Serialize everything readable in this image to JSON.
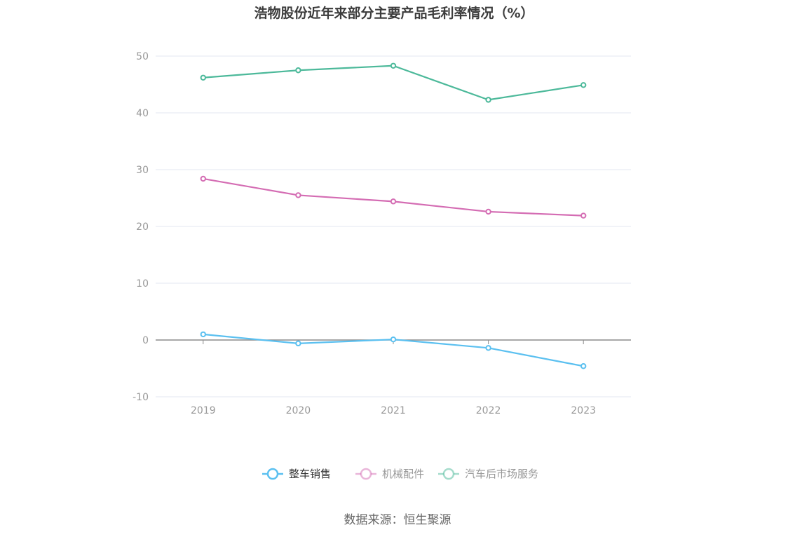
{
  "chart_data": {
    "type": "line",
    "title": "浩物股份近年来部分主要产品毛利率情况（%）",
    "xlabel": "",
    "ylabel": "",
    "x": [
      "2019",
      "2020",
      "2021",
      "2022",
      "2023"
    ],
    "ylim": [
      -10,
      50
    ],
    "yticks": [
      50,
      40,
      30,
      20,
      10,
      0,
      -10
    ],
    "grid": true,
    "legend_position": "bottom",
    "series": [
      {
        "name": "整车销售",
        "color": "#5bc0f0",
        "values": [
          1.0,
          -0.6,
          0.1,
          -1.4,
          -4.6
        ]
      },
      {
        "name": "机械配件",
        "color": "#d46cb3",
        "values": [
          28.4,
          25.5,
          24.4,
          22.6,
          21.9
        ]
      },
      {
        "name": "汽车后市场服务",
        "color": "#4cb99a",
        "values": [
          46.2,
          47.5,
          48.3,
          42.3,
          44.9
        ]
      }
    ],
    "source": "数据来源：恒生聚源"
  }
}
